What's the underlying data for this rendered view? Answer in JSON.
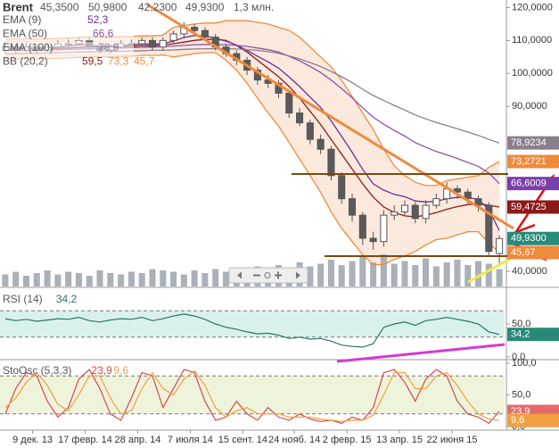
{
  "chart_data": [
    {
      "type": "candlestick",
      "title": "Brent",
      "header_values": [
        "45,3500",
        "50,9800",
        "42,2300",
        "49,9300"
      ],
      "volume_label": "1,3 млн.",
      "xlim": [
        -0.5,
        47.5
      ],
      "xticks": [
        {
          "value": 2.6,
          "label": "9 дек. 13"
        },
        {
          "value": 7.6,
          "label": "17 февр. 14"
        },
        {
          "value": 12.6,
          "label": "28 апр. 14"
        },
        {
          "value": 17.6,
          "label": "7 июля 14"
        },
        {
          "value": 22.6,
          "label": "15 сент. 14"
        },
        {
          "value": 27.5,
          "label": "24 нояб. 14"
        },
        {
          "value": 32.5,
          "label": "2 февр. 15"
        },
        {
          "value": 37.5,
          "label": "13 апр. 15"
        },
        {
          "value": 42.5,
          "label": "22 июня 15"
        }
      ],
      "ylim": [
        37,
        122
      ],
      "yticks": [
        {
          "value": 120,
          "label": "120,0000"
        },
        {
          "value": 110,
          "label": "110,0000"
        },
        {
          "value": 100,
          "label": "100,0000"
        },
        {
          "value": 90,
          "label": "90,0000"
        },
        {
          "value": 40,
          "label": "40,0000"
        }
      ],
      "up_color": "#ffffff",
      "down_color": "#5a5a5a",
      "volume_color": "#a9b1bb",
      "open": [
        107,
        108,
        107,
        108,
        107,
        108,
        109,
        109,
        110,
        108,
        107,
        108,
        109,
        109,
        110,
        108,
        110,
        112,
        114,
        113,
        111,
        108,
        106,
        104,
        101,
        98,
        97,
        94,
        88,
        85,
        80,
        77,
        69,
        62,
        57,
        50,
        49,
        57,
        58,
        60,
        56,
        60,
        62,
        65,
        64,
        62,
        60,
        45.35
      ],
      "high": [
        109.5,
        109,
        109.5,
        109,
        109,
        110,
        110.5,
        111,
        111,
        109,
        109,
        110,
        110.5,
        111,
        111,
        111,
        113,
        115.5,
        115,
        114,
        112,
        109,
        107,
        105,
        102,
        99.5,
        98,
        95,
        89.5,
        86,
        81.5,
        78,
        70,
        63.5,
        58,
        52,
        58.5,
        60,
        61.5,
        61,
        61.5,
        63.5,
        67,
        66,
        65,
        63,
        61,
        50.98
      ],
      "low": [
        106,
        106,
        106.5,
        106,
        106.5,
        107,
        108,
        108.5,
        107,
        106,
        106,
        107.5,
        108,
        108.5,
        107,
        107,
        109,
        111,
        112.5,
        110,
        107,
        105,
        102.5,
        99.5,
        96.5,
        95.5,
        92.5,
        86.5,
        84,
        78.5,
        75.5,
        67.5,
        60.5,
        55,
        48,
        46.5,
        47.5,
        55.5,
        57,
        54.5,
        54.5,
        59,
        60.5,
        62,
        60.5,
        58,
        44.5,
        42.23
      ],
      "close": [
        108,
        107,
        108,
        107,
        108,
        109,
        109,
        110,
        108,
        107,
        108,
        109,
        109,
        110,
        108,
        110,
        112,
        114,
        113,
        111,
        108,
        106,
        104,
        101,
        98,
        97,
        94,
        88,
        85,
        80,
        77,
        69,
        62,
        57,
        50,
        49,
        57,
        58,
        60,
        56,
        60,
        62,
        65,
        64,
        62,
        60,
        46,
        49.93
      ],
      "volume": [
        0.9,
        1.1,
        0.8,
        1.0,
        1.2,
        0.9,
        1.1,
        1.0,
        0.8,
        1.2,
        1.0,
        0.9,
        1.1,
        1.0,
        1.3,
        1.2,
        1.1,
        0.9,
        1.2,
        1.0,
        1.3,
        1.1,
        1.4,
        1.2,
        1.5,
        1.3,
        1.6,
        1.4,
        1.8,
        1.5,
        1.7,
        2.0,
        1.6,
        1.9,
        2.2,
        1.8,
        2.4,
        1.7,
        1.9,
        1.6,
        2.1,
        1.5,
        1.8,
        2.0,
        1.6,
        1.9,
        1.7,
        1.3
      ],
      "bollinger": {
        "name": "BB (20,2)",
        "labels": [
          "59,5",
          "73,3",
          "45,7"
        ],
        "color": "#ee8a3c",
        "middle_color": "#8b1a1a",
        "fill": "#fbe4d4",
        "middle": [
          107.5,
          107.4,
          107.5,
          107.4,
          107.5,
          107.6,
          107.7,
          107.9,
          108,
          108,
          108,
          108.1,
          108.2,
          108.4,
          108.4,
          108.6,
          109,
          109.5,
          110,
          110.3,
          110.3,
          110,
          108.5,
          106.5,
          104,
          101.5,
          99,
          96,
          92.5,
          88.5,
          84.5,
          80,
          75.5,
          71,
          66.5,
          62.5,
          59.5,
          57.8,
          56.8,
          56.5,
          57,
          57.8,
          58.8,
          59.6,
          60.2,
          60.5,
          60,
          59.47
        ],
        "upper": [
          110.5,
          110.4,
          110.5,
          110.4,
          110.5,
          110.6,
          110.7,
          110.9,
          111,
          111,
          111,
          111.1,
          111.2,
          111.4,
          111.4,
          111.6,
          114,
          114.5,
          115,
          115.3,
          115.3,
          116,
          116,
          116,
          115.5,
          115,
          114,
          113,
          111,
          108,
          105,
          102,
          98,
          93,
          88,
          83,
          77,
          72,
          69,
          67,
          66,
          66,
          67.5,
          68,
          68.5,
          69,
          71.5,
          73.27
        ],
        "lower": [
          104.5,
          104.4,
          104.5,
          104.4,
          104.5,
          104.6,
          104.7,
          104.9,
          105,
          105,
          105,
          105.1,
          105.2,
          105.4,
          105.4,
          105.6,
          105,
          105.5,
          106,
          106.3,
          106.3,
          104,
          101,
          97,
          92.5,
          88,
          84,
          79,
          74,
          69,
          64,
          58,
          53,
          49,
          45,
          42,
          42,
          43.6,
          44.6,
          46,
          48,
          49.6,
          50,
          51,
          52,
          52,
          48.5,
          45.67
        ]
      },
      "series": [
        {
          "name": "EMA (9)",
          "label": "52,3",
          "color": "#6d2f95",
          "values": [
            108,
            108,
            108,
            107.8,
            107.8,
            108,
            108.3,
            108.7,
            108.6,
            108.3,
            108.2,
            108.4,
            108.6,
            109,
            108.8,
            109.1,
            109.8,
            110.9,
            111.5,
            111.4,
            110.7,
            109.8,
            108.6,
            107,
            105.2,
            103.5,
            101.6,
            98.9,
            96,
            92.8,
            89.7,
            85.6,
            80.9,
            76.1,
            70.9,
            66.5,
            64.6,
            63.3,
            62.6,
            61.3,
            61,
            61.2,
            62,
            62.4,
            62.3,
            61.8,
            58.7,
            52.3
          ]
        },
        {
          "name": "EMA (50)",
          "label": "66,6",
          "color": "#8a55b0",
          "values": [
            107,
            107,
            107,
            107,
            107.1,
            107.2,
            107.3,
            107.4,
            107.5,
            107.5,
            107.6,
            107.7,
            107.8,
            107.9,
            108,
            108.1,
            108.3,
            108.5,
            108.7,
            108.8,
            108.8,
            108.7,
            108.5,
            108.2,
            107.7,
            107.2,
            106.5,
            105.2,
            103.8,
            102.1,
            100.3,
            98,
            95.4,
            92.6,
            89.6,
            86.7,
            84.6,
            82.7,
            81,
            79,
            77.6,
            76.3,
            75.3,
            74.2,
            73,
            71.8,
            69.8,
            66.6
          ]
        },
        {
          "name": "EMA (100)",
          "label": "78,9",
          "color": "#8b7e8c",
          "values": [
            106,
            106,
            106.1,
            106.1,
            106.2,
            106.3,
            106.4,
            106.5,
            106.5,
            106.6,
            106.6,
            106.7,
            106.8,
            106.9,
            107,
            107,
            107.1,
            107.3,
            107.4,
            107.5,
            107.5,
            107.5,
            107.4,
            107.2,
            107,
            106.6,
            106.1,
            105.3,
            104.4,
            103.3,
            102.1,
            100.6,
            99,
            97.2,
            95.2,
            93.3,
            91.8,
            90.3,
            88.9,
            87.4,
            86.2,
            85.1,
            84.2,
            83.2,
            82.2,
            81.2,
            80,
            78.9
          ]
        }
      ],
      "price_tags": [
        {
          "value": 78.9234,
          "label": "78,9234",
          "color": "#8b7e8c"
        },
        {
          "value": 73.2721,
          "label": "73,2721",
          "color": "#ee8a3c"
        },
        {
          "value": 66.6009,
          "label": "66,6009",
          "color": "#7a3fa8"
        },
        {
          "value": 59.4725,
          "label": "59,4725",
          "color": "#8b1a1a"
        },
        {
          "value": 49.93,
          "label": "49,9300",
          "color": "#2a8a7a"
        },
        {
          "value": 45.67,
          "label": "45,67",
          "color": "#ee8a3c"
        }
      ]
    },
    {
      "type": "line",
      "title": "RSI (14)",
      "ylim": [
        0,
        100
      ],
      "yticks": [
        {
          "value": 50,
          "label": "50,0"
        },
        {
          "value": 0,
          "label": "0,0"
        }
      ],
      "levels": [
        30,
        70
      ],
      "band_color": "#d9f1ec",
      "series": [
        {
          "name": "RSI",
          "label": "34,2",
          "color": "#2a7565",
          "values": [
            58,
            55,
            57,
            54,
            56,
            58,
            57,
            60,
            55,
            53,
            56,
            58,
            57,
            60,
            55,
            58,
            62,
            65,
            62,
            57,
            50,
            45,
            42,
            38,
            35,
            36,
            33,
            28,
            30,
            27,
            28,
            24,
            18,
            16,
            15,
            20,
            45,
            50,
            53,
            48,
            55,
            57,
            60,
            57,
            54,
            50,
            38,
            34.2
          ]
        }
      ],
      "price_tags": [
        {
          "value": 34.2,
          "label": "34,2",
          "color": "#2a8a7a"
        }
      ]
    },
    {
      "type": "line",
      "title": "StoOsc (5,3,3)",
      "ylim": [
        0,
        100
      ],
      "yticks": [
        {
          "value": 100,
          "label": "100,0"
        },
        {
          "value": 50,
          "label": "50,0"
        },
        {
          "value": 0,
          "label": "0,0"
        }
      ],
      "levels": [
        20,
        80
      ],
      "band_color": "#eef3dc",
      "series": [
        {
          "name": "%K",
          "label": "23,9",
          "color": "#d8474a",
          "values": [
            20,
            60,
            85,
            80,
            40,
            15,
            30,
            75,
            90,
            60,
            20,
            10,
            45,
            85,
            80,
            30,
            60,
            90,
            85,
            40,
            10,
            15,
            40,
            20,
            10,
            30,
            15,
            10,
            20,
            12,
            8,
            10,
            5,
            15,
            10,
            30,
            85,
            90,
            70,
            40,
            75,
            90,
            80,
            40,
            20,
            15,
            5,
            23.9
          ]
        },
        {
          "name": "%D",
          "label": "9,6",
          "color": "#f0a040",
          "values": [
            30,
            45,
            70,
            85,
            65,
            35,
            25,
            50,
            80,
            80,
            45,
            20,
            25,
            60,
            85,
            60,
            50,
            75,
            88,
            65,
            30,
            15,
            25,
            30,
            20,
            20,
            20,
            15,
            15,
            15,
            12,
            10,
            8,
            10,
            10,
            18,
            50,
            85,
            85,
            60,
            60,
            80,
            85,
            65,
            40,
            20,
            12,
            9.6
          ]
        }
      ],
      "price_tags": [
        {
          "value": 23.9,
          "label": "23,9",
          "color": "#e46a6a"
        },
        {
          "value": 9.6,
          "label": "9,6",
          "color": "#f0a040"
        }
      ]
    }
  ]
}
